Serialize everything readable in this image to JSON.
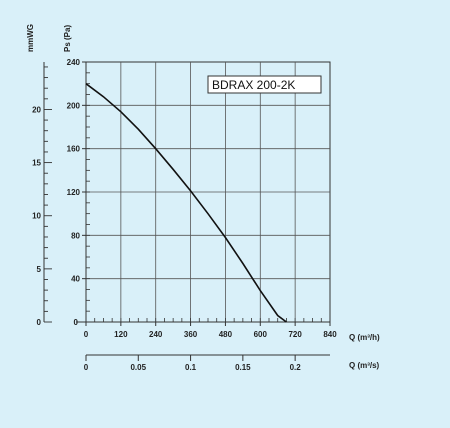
{
  "chart_data": {
    "type": "line",
    "title": "BDRAX  200-2K",
    "x_primary": {
      "label": "Q (m³/h)",
      "ticks": [
        0,
        120,
        240,
        360,
        480,
        600,
        720,
        840
      ],
      "range": [
        0,
        840
      ]
    },
    "x_secondary": {
      "label": "Q (m³/s)",
      "tick_labels": [
        "0",
        "0.05",
        "0.1",
        "0.15",
        "0.2"
      ],
      "ticks": [
        0,
        0.05,
        0.1,
        0.15,
        0.2
      ],
      "to_primary_factor": 3600
    },
    "y_primary": {
      "label": "Ps (Pa)",
      "ticks": [
        40,
        80,
        120,
        160,
        200,
        240
      ],
      "zero_label": "0",
      "range": [
        0,
        240
      ]
    },
    "y_secondary": {
      "label": "mmWG",
      "ticks": [
        0,
        5,
        10,
        15,
        20
      ],
      "to_primary_factor": 9.81
    },
    "grid": true,
    "series": [
      {
        "x": [
          0,
          60,
          120,
          180,
          240,
          300,
          360,
          420,
          480,
          540,
          600,
          660,
          690
        ],
        "y": [
          220,
          208,
          194,
          178,
          160,
          141,
          121,
          100,
          78,
          54,
          29,
          6,
          0
        ]
      }
    ]
  }
}
